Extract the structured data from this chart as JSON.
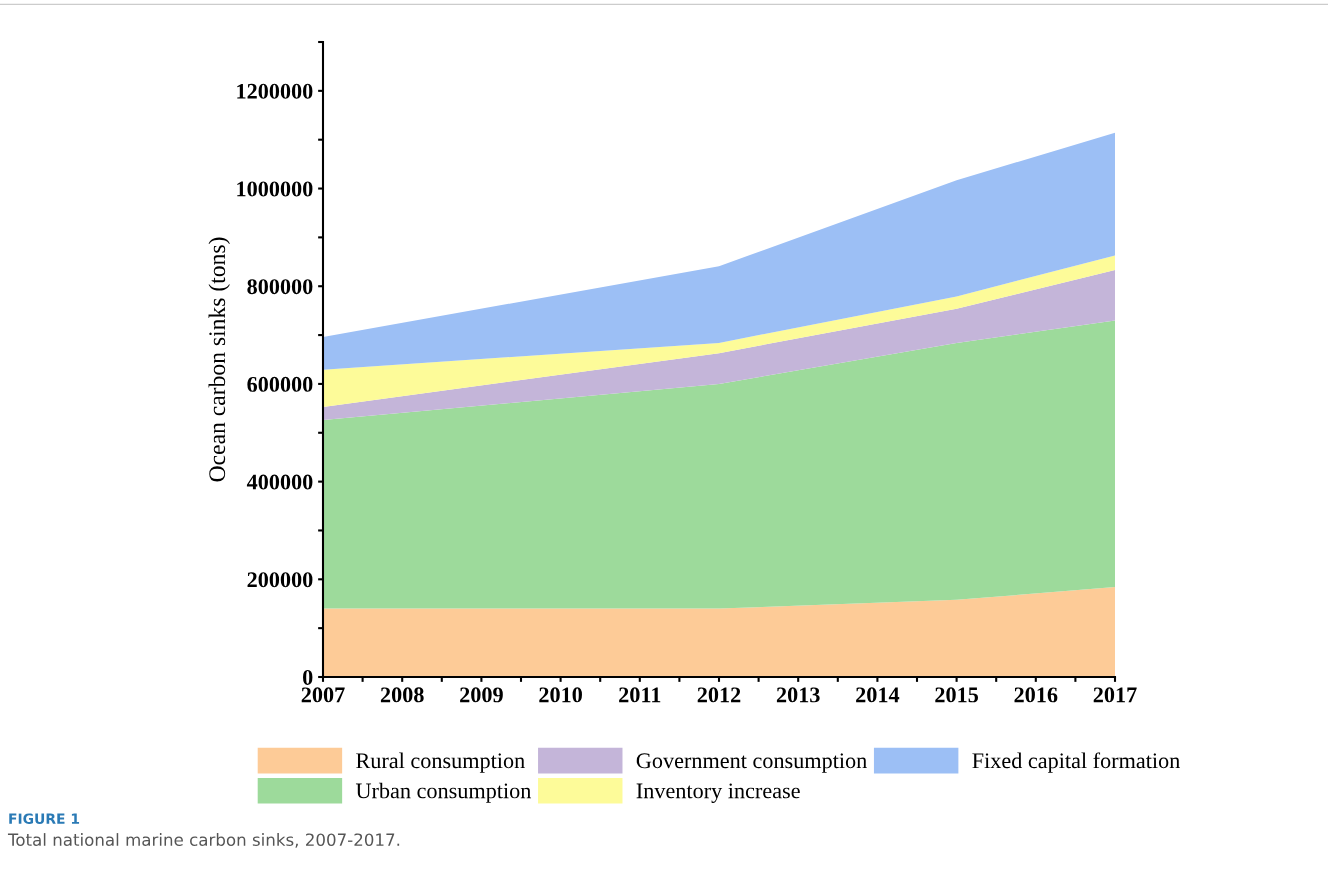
{
  "chart_data": {
    "type": "area",
    "stacked": true,
    "ylabel": "Ocean carbon sinks (tons)",
    "x": [
      2007,
      2012,
      2015,
      2017
    ],
    "series": [
      {
        "name": "Rural consumption",
        "color": "#fdcb97",
        "values": [
          140000,
          140000,
          158000,
          184000
        ]
      },
      {
        "name": "Urban consumption",
        "color": "#9dda9b",
        "values": [
          386000,
          460000,
          526000,
          546000
        ]
      },
      {
        "name": "Government consumption",
        "color": "#c4b5d9",
        "values": [
          27000,
          63000,
          70000,
          103000
        ]
      },
      {
        "name": "Inventory increase",
        "color": "#fdfb99",
        "values": [
          76000,
          21000,
          25000,
          30000
        ]
      },
      {
        "name": "Fixed capital formation",
        "color": "#9cbff5",
        "values": [
          67000,
          157000,
          238000,
          251000
        ]
      }
    ],
    "xlim": [
      2007,
      2017
    ],
    "xticks": [
      2007,
      {
        "value": 2007.5,
        "label": null
      },
      2008,
      {
        "value": 2008.5,
        "label": null
      },
      2009,
      {
        "value": 2009.5,
        "label": null
      },
      2010,
      {
        "value": 2010.5,
        "label": null
      },
      2011,
      {
        "value": 2011.5,
        "label": null
      },
      2012,
      {
        "value": 2012.5,
        "label": null
      },
      2013,
      {
        "value": 2013.5,
        "label": null
      },
      2014,
      {
        "value": 2014.5,
        "label": null
      },
      2015,
      {
        "value": 2015.5,
        "label": null
      },
      2016,
      {
        "value": 2016.5,
        "label": null
      },
      2017
    ],
    "ylim": [
      0,
      1300000
    ],
    "yticks": [
      0,
      {
        "value": 100000,
        "label": null
      },
      200000,
      {
        "value": 300000,
        "label": null
      },
      400000,
      {
        "value": 500000,
        "label": null
      },
      600000,
      {
        "value": 700000,
        "label": null
      },
      800000,
      {
        "value": 900000,
        "label": null
      },
      1000000,
      {
        "value": 1100000,
        "label": null
      },
      1200000,
      {
        "value": 1300000,
        "label": null
      }
    ],
    "legend": "bottom",
    "grid": false,
    "annotations": [
      "FIGURE 1",
      "Total national marine carbon sinks, 2007-2017."
    ]
  }
}
